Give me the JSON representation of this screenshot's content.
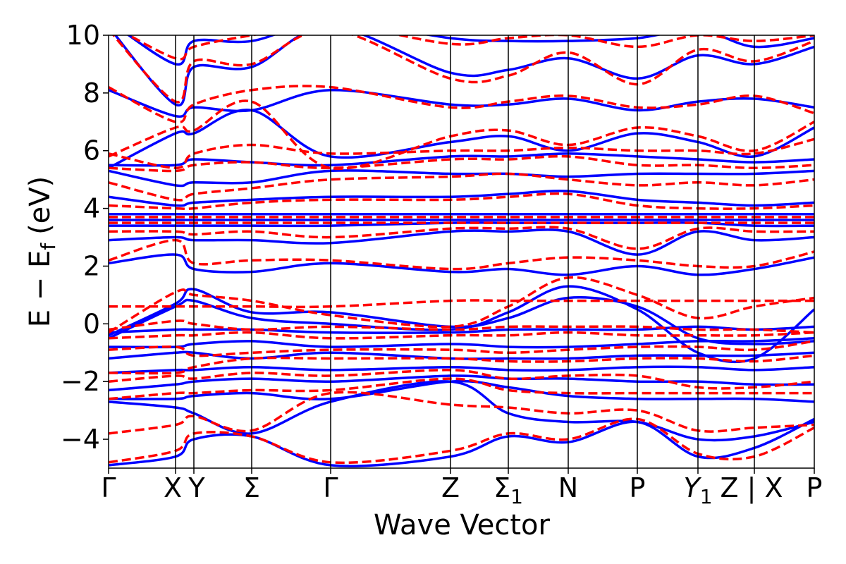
{
  "chart_data": {
    "type": "line",
    "title": "",
    "xlabel": "Wave Vector",
    "ylabel": {
      "main": "E − E",
      "sub": "f",
      "unit": "(eV)"
    },
    "ylim": [
      -5,
      10
    ],
    "yticks": [
      {
        "value": -4,
        "label": "−4"
      },
      {
        "value": -2,
        "label": "−2"
      },
      {
        "value": 0,
        "label": "0"
      },
      {
        "value": 2,
        "label": "2"
      },
      {
        "value": 4,
        "label": "4"
      },
      {
        "value": 6,
        "label": "6"
      },
      {
        "value": 8,
        "label": "8"
      },
      {
        "value": 10,
        "label": "10"
      }
    ],
    "kpoints": [
      {
        "label": "Γ",
        "sub": ""
      },
      {
        "label": "X",
        "sub": ""
      },
      {
        "label": "Y",
        "sub": ""
      },
      {
        "label": "Σ",
        "sub": ""
      },
      {
        "label": "Γ",
        "sub": ""
      },
      {
        "label": "Z",
        "sub": ""
      },
      {
        "label": "Σ",
        "sub": "1"
      },
      {
        "label": "N",
        "sub": ""
      },
      {
        "label": "P",
        "sub": ""
      },
      {
        "label": "Y",
        "sub": "1"
      },
      {
        "label": "Z | X",
        "sub": ""
      },
      {
        "label": "P",
        "sub": ""
      }
    ],
    "grid": false,
    "legend": "none",
    "series_styles": [
      {
        "id": "solid",
        "color": "#0000ff",
        "dash": "none"
      },
      {
        "id": "dashed",
        "color": "#ff0000",
        "dash": "dashed"
      }
    ],
    "bands": [
      {
        "style": "solid",
        "y": [
          -4.9,
          -4.6,
          -4.0,
          -3.9,
          -4.9,
          -4.6,
          -3.9,
          -4.1,
          -3.4,
          -4.6,
          -4.3,
          -3.3
        ]
      },
      {
        "style": "dashed",
        "y": [
          -4.8,
          -4.4,
          -3.8,
          -3.9,
          -4.8,
          -4.4,
          -3.8,
          -4.0,
          -3.3,
          -4.5,
          -4.6,
          -3.6
        ]
      },
      {
        "style": "solid",
        "y": [
          -2.7,
          -2.9,
          -3.1,
          -3.8,
          -2.7,
          -2.0,
          -3.1,
          -3.4,
          -3.4,
          -4.0,
          -3.9,
          -3.4
        ]
      },
      {
        "style": "dashed",
        "y": [
          -3.8,
          -3.5,
          -3.2,
          -3.7,
          -2.4,
          -2.8,
          -2.9,
          -3.1,
          -3.0,
          -3.7,
          -3.6,
          -3.5
        ]
      },
      {
        "style": "solid",
        "y": [
          -2.6,
          -2.6,
          -2.5,
          -2.4,
          -2.6,
          -2.0,
          -2.2,
          -2.5,
          -2.6,
          -2.6,
          -2.6,
          -2.7
        ]
      },
      {
        "style": "dashed",
        "y": [
          -2.6,
          -2.4,
          -2.4,
          -2.3,
          -2.3,
          -1.9,
          -2.3,
          -2.4,
          -2.4,
          -2.4,
          -2.4,
          -2.4
        ]
      },
      {
        "style": "solid",
        "y": [
          -2.3,
          -2.1,
          -2.0,
          -1.9,
          -2.0,
          -1.8,
          -1.9,
          -1.9,
          -2.0,
          -2.0,
          -2.1,
          -2.1
        ]
      },
      {
        "style": "dashed",
        "y": [
          -2.0,
          -1.8,
          -1.9,
          -1.7,
          -1.8,
          -1.6,
          -1.9,
          -1.8,
          -1.8,
          -2.2,
          -2.2,
          -2.0
        ]
      },
      {
        "style": "solid",
        "y": [
          -1.7,
          -1.6,
          -1.6,
          -1.5,
          -1.6,
          -1.5,
          -1.6,
          -1.6,
          -1.5,
          -1.5,
          -1.6,
          -1.5
        ]
      },
      {
        "style": "dashed",
        "y": [
          -1.7,
          -1.7,
          -1.5,
          -1.2,
          -1.2,
          -1.2,
          -1.3,
          -1.3,
          -1.2,
          -1.2,
          -1.3,
          -1.1
        ]
      },
      {
        "style": "solid",
        "y": [
          -1.2,
          -1.0,
          -1.0,
          -1.2,
          -1.0,
          -1.2,
          -1.2,
          -1.2,
          -1.1,
          -1.1,
          -1.1,
          -1.0
        ]
      },
      {
        "style": "dashed",
        "y": [
          -0.9,
          -0.8,
          -1.1,
          -1.0,
          -0.9,
          -0.9,
          -1.0,
          -0.9,
          -0.8,
          -0.8,
          -0.9,
          -0.6
        ]
      },
      {
        "style": "solid",
        "y": [
          -0.8,
          -0.8,
          -0.7,
          -0.6,
          -0.8,
          -0.7,
          -0.8,
          -0.8,
          -0.7,
          -0.6,
          -0.6,
          -0.5
        ]
      },
      {
        "style": "dashed",
        "y": [
          -0.5,
          -0.4,
          -0.4,
          -0.3,
          -0.5,
          -0.4,
          -0.4,
          -0.3,
          -0.4,
          -0.4,
          -0.4,
          -0.3
        ]
      },
      {
        "style": "solid",
        "y": [
          -0.3,
          -0.2,
          -0.2,
          -0.2,
          -0.3,
          -0.3,
          -0.2,
          -0.2,
          -0.2,
          -0.1,
          -0.2,
          -0.1
        ]
      },
      {
        "style": "dashed",
        "y": [
          -0.2,
          0.1,
          0.0,
          -0.2,
          -0.1,
          -0.2,
          -0.1,
          -0.1,
          -0.1,
          -0.2,
          -0.2,
          -0.3
        ]
      },
      {
        "style": "solid",
        "y": [
          -0.4,
          0.7,
          1.2,
          0.4,
          0.4,
          -0.1,
          0.2,
          0.9,
          0.6,
          -0.5,
          -0.7,
          -0.6
        ]
      },
      {
        "style": "dashed",
        "y": [
          0.6,
          0.6,
          0.6,
          0.6,
          0.6,
          0.8,
          0.8,
          0.8,
          0.8,
          0.8,
          0.8,
          0.8
        ]
      },
      {
        "style": "solid",
        "y": [
          -0.5,
          0.6,
          0.8,
          0.2,
          0.0,
          -0.2,
          0.4,
          1.3,
          0.5,
          -1.0,
          -1.2,
          0.5
        ]
      },
      {
        "style": "dashed",
        "y": [
          -0.3,
          1.1,
          1.0,
          0.8,
          0.3,
          -0.1,
          0.6,
          1.6,
          1.0,
          0.2,
          0.6,
          0.9
        ]
      },
      {
        "style": "solid",
        "y": [
          2.1,
          2.4,
          1.9,
          1.8,
          2.1,
          1.8,
          1.9,
          1.7,
          2.0,
          1.7,
          1.9,
          2.3
        ]
      },
      {
        "style": "dashed",
        "y": [
          2.2,
          2.9,
          2.1,
          2.2,
          2.2,
          1.9,
          2.1,
          2.3,
          2.2,
          2.0,
          2.0,
          2.5
        ]
      },
      {
        "style": "solid",
        "y": [
          2.9,
          3.0,
          2.9,
          2.9,
          2.8,
          3.2,
          3.2,
          3.2,
          2.4,
          3.2,
          2.9,
          3.0
        ]
      },
      {
        "style": "dashed",
        "y": [
          3.2,
          3.2,
          3.1,
          3.2,
          3.0,
          3.3,
          3.3,
          3.3,
          2.6,
          3.3,
          3.2,
          3.2
        ]
      },
      {
        "style": "solid",
        "y": [
          3.4,
          3.4,
          3.4,
          3.4,
          3.4,
          3.5,
          3.5,
          3.5,
          3.5,
          3.5,
          3.4,
          3.4
        ]
      },
      {
        "style": "dashed",
        "y": [
          3.5,
          3.5,
          3.5,
          3.5,
          3.5,
          3.5,
          3.5,
          3.5,
          3.5,
          3.5,
          3.5,
          3.5
        ]
      },
      {
        "style": "solid",
        "y": [
          3.6,
          3.6,
          3.6,
          3.6,
          3.6,
          3.6,
          3.6,
          3.6,
          3.6,
          3.6,
          3.6,
          3.6
        ]
      },
      {
        "style": "dashed",
        "y": [
          3.7,
          3.7,
          3.7,
          3.7,
          3.7,
          3.7,
          3.7,
          3.7,
          3.7,
          3.7,
          3.7,
          3.7
        ]
      },
      {
        "style": "solid",
        "y": [
          3.8,
          3.8,
          3.8,
          3.8,
          3.8,
          3.8,
          3.8,
          3.8,
          3.8,
          3.8,
          3.8,
          3.8
        ]
      },
      {
        "style": "dashed",
        "y": [
          4.1,
          4.0,
          4.0,
          4.2,
          4.3,
          4.3,
          4.4,
          4.5,
          4.1,
          4.0,
          4.0,
          4.1
        ]
      },
      {
        "style": "solid",
        "y": [
          4.4,
          4.1,
          4.2,
          4.3,
          4.4,
          4.4,
          4.5,
          4.6,
          4.3,
          4.2,
          4.1,
          4.2
        ]
      },
      {
        "style": "dashed",
        "y": [
          4.9,
          4.3,
          4.5,
          4.7,
          5.0,
          5.1,
          5.2,
          5.0,
          4.8,
          4.9,
          4.8,
          5.0
        ]
      },
      {
        "style": "solid",
        "y": [
          5.3,
          4.8,
          4.9,
          4.9,
          5.3,
          5.2,
          5.2,
          5.1,
          5.2,
          5.2,
          5.2,
          5.3
        ]
      },
      {
        "style": "dashed",
        "y": [
          5.4,
          5.3,
          5.5,
          5.6,
          5.4,
          5.7,
          5.7,
          5.8,
          5.5,
          5.5,
          5.4,
          5.5
        ]
      },
      {
        "style": "solid",
        "y": [
          5.5,
          5.5,
          5.7,
          5.6,
          5.5,
          5.8,
          5.8,
          5.9,
          5.8,
          5.7,
          5.6,
          5.7
        ]
      },
      {
        "style": "dashed",
        "y": [
          5.9,
          5.4,
          5.9,
          6.2,
          5.9,
          6.0,
          6.0,
          6.1,
          6.0,
          6.0,
          5.9,
          6.4
        ]
      },
      {
        "style": "solid",
        "y": [
          5.4,
          6.6,
          6.6,
          7.4,
          5.8,
          6.3,
          6.5,
          6.0,
          6.6,
          6.3,
          5.8,
          6.8
        ]
      },
      {
        "style": "dashed",
        "y": [
          5.8,
          6.8,
          6.7,
          7.7,
          5.4,
          6.5,
          6.7,
          6.2,
          6.8,
          6.5,
          6.0,
          7.0
        ]
      },
      {
        "style": "solid",
        "y": [
          8.1,
          7.2,
          7.5,
          7.4,
          8.1,
          7.6,
          7.6,
          7.8,
          7.4,
          7.7,
          7.8,
          7.5
        ]
      },
      {
        "style": "dashed",
        "y": [
          8.2,
          7.0,
          7.6,
          8.1,
          8.2,
          7.5,
          7.7,
          7.9,
          7.5,
          7.6,
          7.9,
          7.3
        ]
      },
      {
        "style": "solid",
        "y": [
          10.3,
          7.6,
          8.9,
          8.9,
          10.3,
          8.7,
          8.8,
          9.2,
          8.5,
          9.3,
          9.0,
          9.6
        ]
      },
      {
        "style": "dashed",
        "y": [
          10.2,
          7.7,
          9.1,
          9.0,
          10.2,
          8.5,
          8.6,
          9.4,
          8.3,
          9.5,
          9.1,
          9.8
        ]
      },
      {
        "style": "solid",
        "y": [
          10.5,
          9.0,
          9.8,
          9.8,
          10.5,
          9.9,
          9.8,
          9.8,
          9.9,
          10.2,
          9.6,
          9.9
        ]
      },
      {
        "style": "dashed",
        "y": [
          10.4,
          9.2,
          9.6,
          10.0,
          10.4,
          9.7,
          9.9,
          10.0,
          9.6,
          10.0,
          9.8,
          10.0
        ]
      }
    ]
  }
}
